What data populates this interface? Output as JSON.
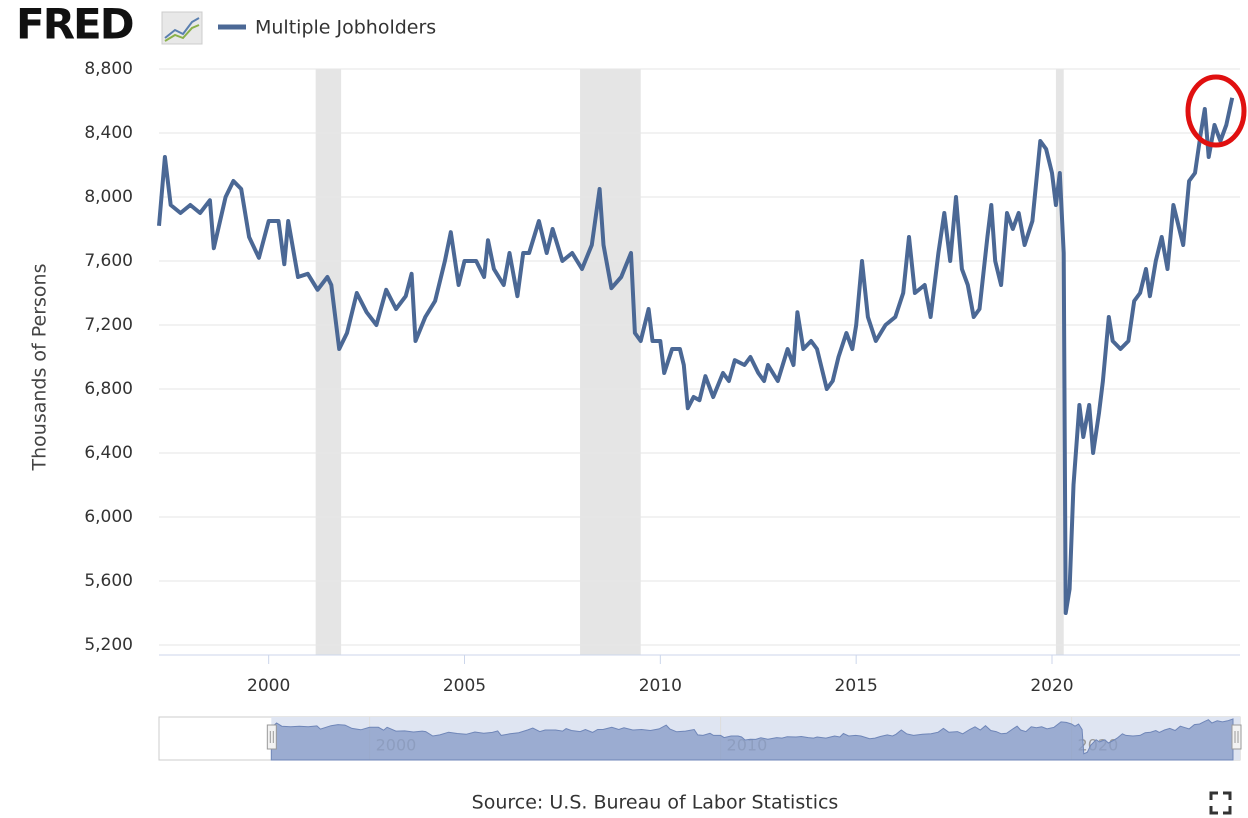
{
  "logo": "FRED",
  "chart_data": {
    "type": "line",
    "legend": "Multiple Jobholders",
    "ylabel": "Thousands of Persons",
    "source": "Source: U.S. Bureau of Labor Statistics",
    "color": "#4b6895",
    "xlim": [
      1997.2,
      2024.8
    ],
    "xticks": [
      2000,
      2005,
      2010,
      2015,
      2020
    ],
    "ylim": [
      5200,
      8800
    ],
    "yticks": [
      {
        "value": 5200,
        "label": "5,200"
      },
      {
        "value": 5600,
        "label": "5,600"
      },
      {
        "value": 6000,
        "label": "6,000"
      },
      {
        "value": 6400,
        "label": "6,400"
      },
      {
        "value": 6800,
        "label": "6,800"
      },
      {
        "value": 7200,
        "label": "7,200"
      },
      {
        "value": 7600,
        "label": "7,600"
      },
      {
        "value": 8000,
        "label": "8,000"
      },
      {
        "value": 8400,
        "label": "8,400"
      },
      {
        "value": 8800,
        "label": "8,800"
      }
    ],
    "grid": true,
    "recessions": [
      [
        2001.2,
        2001.85
      ],
      [
        2007.95,
        2009.5
      ],
      [
        2020.1,
        2020.3
      ]
    ],
    "x": [
      1997.2,
      1997.35,
      1997.5,
      1997.75,
      1998.0,
      1998.25,
      1998.5,
      1998.6,
      1998.9,
      1999.1,
      1999.3,
      1999.5,
      1999.75,
      2000.0,
      2000.25,
      2000.4,
      2000.5,
      2000.75,
      2001.0,
      2001.25,
      2001.5,
      2001.6,
      2001.8,
      2002.0,
      2002.25,
      2002.5,
      2002.75,
      2003.0,
      2003.25,
      2003.5,
      2003.65,
      2003.75,
      2004.0,
      2004.25,
      2004.5,
      2004.65,
      2004.85,
      2005.0,
      2005.3,
      2005.5,
      2005.6,
      2005.75,
      2006.0,
      2006.15,
      2006.35,
      2006.5,
      2006.65,
      2006.9,
      2007.1,
      2007.25,
      2007.5,
      2007.75,
      2008.0,
      2008.25,
      2008.45,
      2008.55,
      2008.75,
      2009.0,
      2009.25,
      2009.35,
      2009.5,
      2009.7,
      2009.8,
      2010.0,
      2010.1,
      2010.3,
      2010.5,
      2010.6,
      2010.7,
      2010.85,
      2011.0,
      2011.15,
      2011.35,
      2011.6,
      2011.75,
      2011.9,
      2012.15,
      2012.3,
      2012.5,
      2012.65,
      2012.75,
      2013.0,
      2013.25,
      2013.4,
      2013.5,
      2013.65,
      2013.85,
      2014.0,
      2014.25,
      2014.4,
      2014.55,
      2014.75,
      2014.9,
      2015.0,
      2015.15,
      2015.3,
      2015.5,
      2015.75,
      2016.0,
      2016.2,
      2016.35,
      2016.5,
      2016.75,
      2016.9,
      2017.1,
      2017.25,
      2017.4,
      2017.55,
      2017.7,
      2017.85,
      2018.0,
      2018.15,
      2018.35,
      2018.45,
      2018.55,
      2018.7,
      2018.85,
      2019.0,
      2019.15,
      2019.3,
      2019.5,
      2019.7,
      2019.85,
      2020.0,
      2020.1,
      2020.2,
      2020.3,
      2020.35,
      2020.45,
      2020.55,
      2020.7,
      2020.8,
      2020.95,
      2021.05,
      2021.2,
      2021.3,
      2021.45,
      2021.55,
      2021.75,
      2021.95,
      2022.1,
      2022.25,
      2022.4,
      2022.5,
      2022.65,
      2022.8,
      2022.95,
      2023.1,
      2023.25,
      2023.35,
      2023.5,
      2023.65,
      2023.8,
      2023.9,
      2024.0,
      2024.15,
      2024.3,
      2024.45,
      2024.6
    ],
    "values": [
      7820,
      8250,
      7950,
      7900,
      7950,
      7900,
      7980,
      7680,
      8000,
      8100,
      8050,
      7750,
      7620,
      7850,
      7850,
      7580,
      7850,
      7500,
      7520,
      7420,
      7500,
      7450,
      7050,
      7150,
      7400,
      7280,
      7200,
      7420,
      7300,
      7380,
      7520,
      7100,
      7250,
      7350,
      7600,
      7780,
      7450,
      7600,
      7600,
      7500,
      7730,
      7550,
      7450,
      7650,
      7380,
      7650,
      7650,
      7850,
      7650,
      7800,
      7600,
      7650,
      7550,
      7700,
      8050,
      7700,
      7430,
      7500,
      7650,
      7150,
      7100,
      7300,
      7100,
      7100,
      6900,
      7050,
      7050,
      6950,
      6680,
      6750,
      6730,
      6880,
      6750,
      6900,
      6850,
      6980,
      6950,
      7000,
      6900,
      6850,
      6950,
      6850,
      7050,
      6950,
      7280,
      7050,
      7100,
      7050,
      6800,
      6850,
      7000,
      7150,
      7050,
      7200,
      7600,
      7250,
      7100,
      7200,
      7250,
      7400,
      7750,
      7400,
      7450,
      7250,
      7650,
      7900,
      7600,
      8000,
      7550,
      7450,
      7250,
      7300,
      7750,
      7950,
      7600,
      7450,
      7900,
      7800,
      7900,
      7700,
      7850,
      8350,
      8300,
      8150,
      7950,
      8150,
      7650,
      5400,
      5550,
      6200,
      6700,
      6500,
      6700,
      6400,
      6650,
      6850,
      7250,
      7100,
      7050,
      7100,
      7350,
      7400,
      7550,
      7380,
      7600,
      7750,
      7550,
      7950,
      7800,
      7700,
      8100,
      8150,
      8400,
      8550,
      8250,
      8450,
      8350,
      8450,
      8620
    ],
    "navigator": {
      "xlim": [
        1994.0,
        2024.8
      ],
      "xticks": [
        2000,
        2010,
        2020
      ]
    }
  }
}
